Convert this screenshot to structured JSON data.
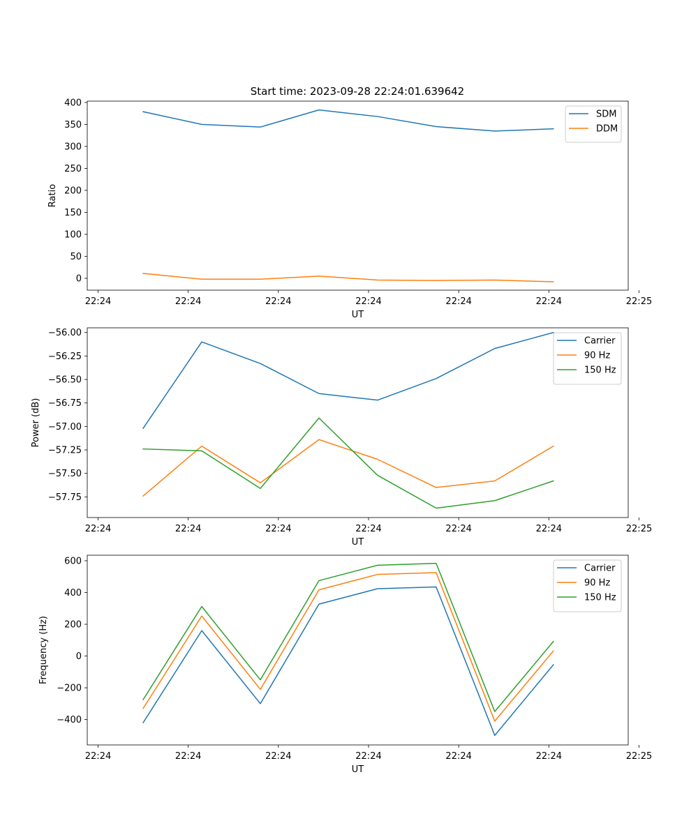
{
  "figure_title": "Start time: 2023-09-28 22:24:01.639642",
  "chart_data": [
    {
      "type": "line",
      "title": "Start time: 2023-09-28 22:24:01.639642",
      "xlabel": "UT",
      "ylabel": "Ratio",
      "x": [
        0.5,
        1.15,
        1.8,
        2.45,
        3.1,
        3.75,
        4.4,
        5.05
      ],
      "xlim": [
        -0.12,
        5.88
      ],
      "xticks": [
        0,
        1,
        2,
        3,
        4,
        5,
        6
      ],
      "xtick_labels": [
        "22:24",
        "22:24",
        "22:24",
        "22:24",
        "22:24",
        "22:24",
        "22:25"
      ],
      "ylim": [
        -27,
        403
      ],
      "yticks": [
        0,
        50,
        100,
        150,
        200,
        250,
        300,
        350,
        400
      ],
      "ytick_labels": [
        "0",
        "50",
        "100",
        "150",
        "200",
        "250",
        "300",
        "350",
        "400"
      ],
      "grid": false,
      "legend_position": "top-right",
      "series": [
        {
          "name": "SDM",
          "color": "#1f77b4",
          "values": [
            379,
            350,
            344,
            383,
            368,
            345,
            335,
            340
          ]
        },
        {
          "name": "DDM",
          "color": "#ff7f0e",
          "values": [
            11,
            -2,
            -2,
            5,
            -4,
            -5,
            -4,
            -8
          ]
        }
      ]
    },
    {
      "type": "line",
      "title": "",
      "xlabel": "UT",
      "ylabel": "Power (dB)",
      "x": [
        0.5,
        1.15,
        1.8,
        2.45,
        3.1,
        3.75,
        4.4,
        5.05
      ],
      "xlim": [
        -0.12,
        5.88
      ],
      "xticks": [
        0,
        1,
        2,
        3,
        4,
        5,
        6
      ],
      "xtick_labels": [
        "22:24",
        "22:24",
        "22:24",
        "22:24",
        "22:24",
        "22:24",
        "22:25"
      ],
      "ylim": [
        -57.97,
        -55.95
      ],
      "yticks": [
        -57.75,
        -57.5,
        -57.25,
        -57.0,
        -56.75,
        -56.5,
        -56.25,
        -56.0
      ],
      "ytick_labels": [
        "−57.75",
        "−57.50",
        "−57.25",
        "−57.00",
        "−56.75",
        "−56.50",
        "−56.25",
        "−56.00"
      ],
      "grid": false,
      "legend_position": "top-right",
      "series": [
        {
          "name": "Carrier",
          "color": "#1f77b4",
          "values": [
            -57.02,
            -56.1,
            -56.33,
            -56.65,
            -56.72,
            -56.49,
            -56.17,
            -56.0
          ]
        },
        {
          "name": "90 Hz",
          "color": "#ff7f0e",
          "values": [
            -57.74,
            -57.21,
            -57.6,
            -57.14,
            -57.35,
            -57.65,
            -57.58,
            -57.21
          ]
        },
        {
          "name": "150 Hz",
          "color": "#2ca02c",
          "values": [
            -57.24,
            -57.26,
            -57.66,
            -56.91,
            -57.52,
            -57.87,
            -57.79,
            -57.58
          ]
        }
      ]
    },
    {
      "type": "line",
      "title": "",
      "xlabel": "UT",
      "ylabel": "Frequency (Hz)",
      "x": [
        0.5,
        1.15,
        1.8,
        2.45,
        3.1,
        3.75,
        4.4,
        5.05
      ],
      "xlim": [
        -0.12,
        5.88
      ],
      "xticks": [
        0,
        1,
        2,
        3,
        4,
        5,
        6
      ],
      "xtick_labels": [
        "22:24",
        "22:24",
        "22:24",
        "22:24",
        "22:24",
        "22:24",
        "22:25"
      ],
      "ylim": [
        -560,
        635
      ],
      "yticks": [
        -400,
        -200,
        0,
        200,
        400,
        600
      ],
      "ytick_labels": [
        "−400",
        "−200",
        "0",
        "200",
        "400",
        "600"
      ],
      "grid": false,
      "legend_position": "top-right",
      "series": [
        {
          "name": "Carrier",
          "color": "#1f77b4",
          "values": [
            -420,
            160,
            -300,
            327,
            424,
            435,
            -500,
            -55
          ]
        },
        {
          "name": "90 Hz",
          "color": "#ff7f0e",
          "values": [
            -330,
            252,
            -210,
            417,
            514,
            525,
            -410,
            32
          ]
        },
        {
          "name": "150 Hz",
          "color": "#2ca02c",
          "values": [
            -275,
            312,
            -150,
            475,
            572,
            584,
            -350,
            92
          ]
        }
      ]
    }
  ]
}
